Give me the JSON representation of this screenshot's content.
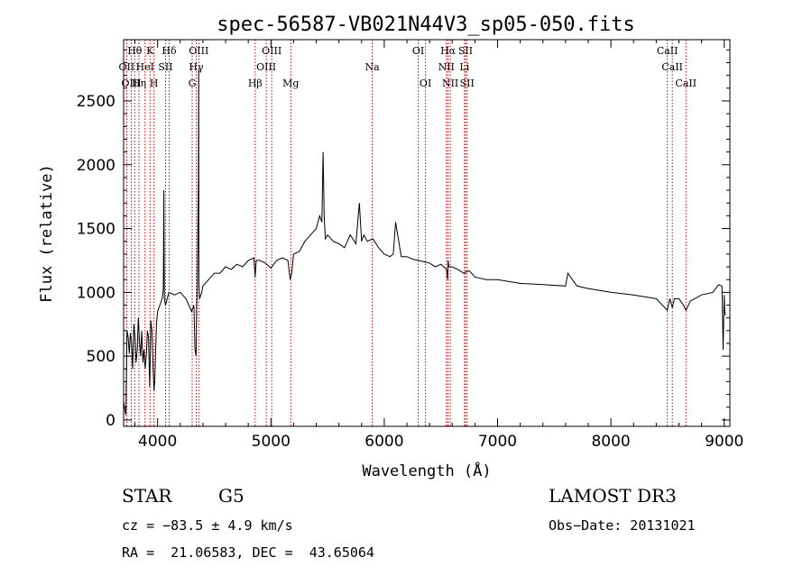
{
  "chart_data": {
    "type": "line",
    "title": "spec-56587-VB021N44V3_sp05-050.fits",
    "xlabel": "Wavelength (Å)",
    "ylabel": "Flux (relative)",
    "xlim": [
      3700,
      9050
    ],
    "ylim": [
      -50,
      2980
    ],
    "xticks": [
      4000,
      5000,
      6000,
      7000,
      8000,
      9000
    ],
    "xtick_labels": [
      "4000",
      "5000",
      "6000",
      "7000",
      "8000",
      "9000"
    ],
    "yticks": [
      0,
      500,
      1000,
      1500,
      2000,
      2500
    ],
    "ytick_labels": [
      "0",
      "500",
      "1000",
      "1500",
      "2000",
      "2500"
    ],
    "series": [
      {
        "name": "flux",
        "x": [
          3700,
          3710,
          3720,
          3730,
          3740,
          3750,
          3760,
          3770,
          3780,
          3790,
          3800,
          3810,
          3820,
          3830,
          3840,
          3850,
          3860,
          3870,
          3880,
          3890,
          3900,
          3910,
          3920,
          3930,
          3935,
          3940,
          3950,
          3960,
          3968,
          3975,
          3990,
          4000,
          4020,
          4040,
          4050,
          4055,
          4060,
          4070,
          4100,
          4150,
          4200,
          4250,
          4300,
          4320,
          4330,
          4340,
          4345,
          4350,
          4360,
          4362,
          4364,
          4370,
          4390,
          4400,
          4450,
          4500,
          4550,
          4600,
          4650,
          4700,
          4750,
          4800,
          4850,
          4861,
          4870,
          4900,
          4950,
          5000,
          5050,
          5100,
          5150,
          5170,
          5183,
          5200,
          5250,
          5300,
          5350,
          5400,
          5430,
          5450,
          5460,
          5470,
          5480,
          5500,
          5550,
          5600,
          5650,
          5700,
          5750,
          5780,
          5800,
          5820,
          5850,
          5900,
          5950,
          6000,
          6050,
          6080,
          6100,
          6150,
          6200,
          6250,
          6300,
          6350,
          6400,
          6450,
          6500,
          6550,
          6560,
          6563,
          6570,
          6600,
          6650,
          6700,
          6750,
          6800,
          6900,
          7000,
          7200,
          7400,
          7600,
          7620,
          7700,
          7800,
          8000,
          8200,
          8400,
          8498,
          8520,
          8542,
          8560,
          8600,
          8640,
          8662,
          8700,
          8800,
          8900,
          8950,
          8980,
          8990,
          9000,
          9005,
          9010
        ],
        "values": [
          150,
          80,
          40,
          700,
          650,
          520,
          680,
          600,
          400,
          750,
          650,
          450,
          550,
          800,
          620,
          500,
          700,
          450,
          550,
          400,
          500,
          700,
          650,
          260,
          450,
          780,
          700,
          400,
          230,
          300,
          750,
          850,
          900,
          950,
          1020,
          1800,
          950,
          900,
          1000,
          980,
          1000,
          950,
          850,
          900,
          550,
          500,
          900,
          1000,
          1900,
          2750,
          1100,
          950,
          1000,
          1050,
          1100,
          1150,
          1150,
          1200,
          1180,
          1220,
          1200,
          1250,
          1270,
          1120,
          1250,
          1250,
          1230,
          1190,
          1250,
          1270,
          1250,
          1100,
          1150,
          1300,
          1320,
          1400,
          1450,
          1500,
          1600,
          1550,
          2100,
          1600,
          1420,
          1450,
          1400,
          1380,
          1350,
          1450,
          1380,
          1700,
          1400,
          1450,
          1400,
          1420,
          1350,
          1300,
          1280,
          1300,
          1550,
          1280,
          1280,
          1260,
          1250,
          1240,
          1230,
          1200,
          1220,
          1180,
          1100,
          1250,
          1200,
          1200,
          1180,
          1150,
          1170,
          1120,
          1100,
          1100,
          1070,
          1060,
          1050,
          1150,
          1050,
          1030,
          1000,
          980,
          950,
          860,
          950,
          880,
          950,
          950,
          900,
          860,
          930,
          980,
          1000,
          1060,
          1050,
          550,
          980,
          850,
          820
        ]
      }
    ],
    "lines": [
      {
        "name": "Hθ",
        "x": 3798,
        "row": 1
      },
      {
        "name": "OII",
        "x": 3727,
        "row": 2
      },
      {
        "name": "OIII",
        "x": 3768,
        "row": 3
      },
      {
        "name": "Hη",
        "x": 3835,
        "row": 3
      },
      {
        "name": "HeI",
        "x": 3889,
        "row": 2
      },
      {
        "name": "K",
        "x": 3933,
        "row": 1
      },
      {
        "name": "SII",
        "x": 4070,
        "row": 2
      },
      {
        "name": "H",
        "x": 3968,
        "row": 3
      },
      {
        "name": "Hδ",
        "x": 4102,
        "row": 1
      },
      {
        "name": "OIII",
        "x": 4363,
        "row": 1
      },
      {
        "name": "Hγ",
        "x": 4341,
        "row": 2
      },
      {
        "name": "G",
        "x": 4305,
        "row": 3
      },
      {
        "name": "Hβ",
        "x": 4861,
        "row": 3
      },
      {
        "name": "OIII",
        "x": 4959,
        "row": 2
      },
      {
        "name": "OIII",
        "x": 5007,
        "row": 1
      },
      {
        "name": "Mg",
        "x": 5175,
        "row": 3
      },
      {
        "name": "Na",
        "x": 5894,
        "row": 2
      },
      {
        "name": "OI",
        "x": 6300,
        "row": 1
      },
      {
        "name": "OI",
        "x": 6364,
        "row": 3
      },
      {
        "name": "NII",
        "x": 6548,
        "row": 2
      },
      {
        "name": "Hα",
        "x": 6563,
        "row": 1
      },
      {
        "name": "NII",
        "x": 6583,
        "row": 3
      },
      {
        "name": "SII",
        "x": 6717,
        "row": 1
      },
      {
        "name": "Li",
        "x": 6708,
        "row": 2
      },
      {
        "name": "SII",
        "x": 6731,
        "row": 3
      },
      {
        "name": "CaII",
        "x": 8498,
        "row": 1
      },
      {
        "name": "CaII",
        "x": 8542,
        "row": 2
      },
      {
        "name": "CaII",
        "x": 8662,
        "row": 3
      }
    ]
  },
  "info": {
    "class": "STAR",
    "subclass": "G5",
    "survey": "LAMOST DR3",
    "cz": "cz = −83.5 ± 4.9 km/s",
    "obsdate": "Obs−Date: 20131021",
    "radec": "RA =  21.06583, DEC =  43.65064"
  },
  "colors": {
    "spectrum": "#000000",
    "line_marker": "#cc0000",
    "axes": "#000000"
  }
}
